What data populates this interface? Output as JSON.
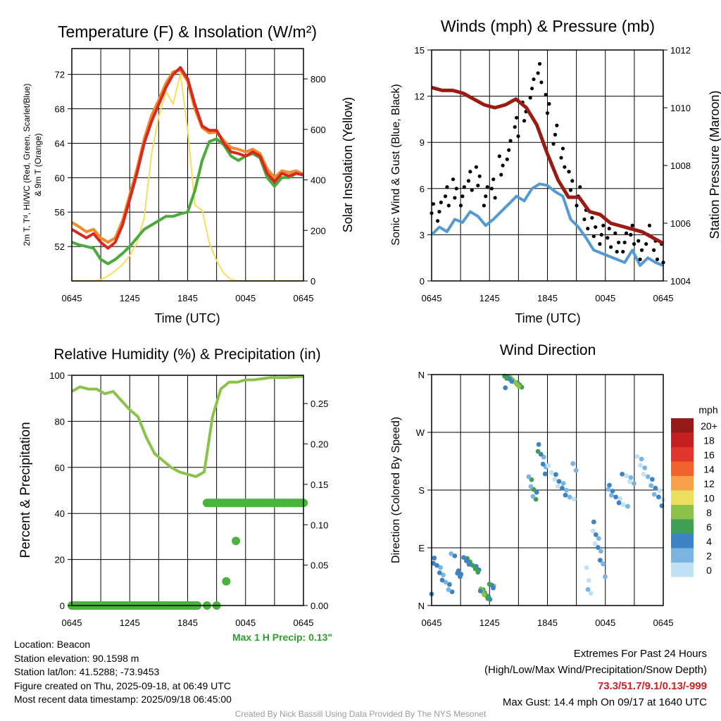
{
  "xticks": [
    "0645",
    "1245",
    "1845",
    "0045",
    "0645"
  ],
  "chart_data": [
    {
      "type": "line",
      "title": "Temperature (F) & Insolation (W/m²)",
      "xlabel": "Time (UTC)",
      "ylabel_lines": [
        "2m T, Tᵈ, HI/WC (Red, Green, Scarlet/Blue)",
        "& 9m T (Orange)"
      ],
      "y2label": "Solar Insolation (Yellow)",
      "ylim": [
        48,
        75
      ],
      "yticks": [
        52,
        56,
        60,
        64,
        68,
        72
      ],
      "y2lim": [
        0,
        920
      ],
      "y2ticks": [
        0,
        200,
        400,
        600,
        800
      ],
      "x_hours": [
        0,
        0.5,
        1,
        1.5,
        2,
        2.5,
        3,
        3.5,
        4,
        4.5,
        5,
        5.5,
        6,
        6.5,
        7,
        7.5,
        8,
        8.5,
        9,
        9.5,
        10,
        10.5,
        11,
        11.5,
        12,
        12.5,
        13,
        13.5,
        14,
        14.5,
        15,
        15.5,
        16,
        16.5,
        17,
        17.5,
        18,
        18.5,
        19,
        19.5,
        20,
        20.5,
        21,
        21.5,
        22,
        22.5,
        23,
        23.5,
        24
      ],
      "series": [
        {
          "color": "#d62a20",
          "values": [
            54.0,
            53.5,
            53.0,
            53.5,
            52.5,
            51.8,
            52.5,
            54.5,
            57.5,
            60.5,
            64.0,
            66.5,
            68.5,
            70.5,
            72.0,
            72.8,
            71.5,
            68.5,
            66.0,
            65.5,
            65.5,
            64.0,
            63.0,
            62.8,
            62.5,
            63.0,
            62.5,
            60.5,
            59.5,
            60.5,
            60.2,
            60.5,
            60.3
          ]
        },
        {
          "color": "#f08a2c",
          "values": [
            54.8,
            54.3,
            53.7,
            54.0,
            53.0,
            52.5,
            53.0,
            55.0,
            58.0,
            61.0,
            64.5,
            67.2,
            69.0,
            71.0,
            72.3,
            72.5,
            71.2,
            68.0,
            65.8,
            65.2,
            65.3,
            64.3,
            63.5,
            63.3,
            63.0,
            63.3,
            62.8,
            61.0,
            60.0,
            60.8,
            60.6,
            60.8,
            60.4
          ]
        },
        {
          "color": "#4aaa3c",
          "values": [
            52.5,
            52.2,
            52.0,
            51.8,
            50.5,
            50.0,
            50.5,
            51.2,
            52.0,
            53.0,
            54.0,
            54.5,
            55.0,
            55.5,
            55.5,
            55.8,
            56.0,
            58.5,
            62.0,
            64.2,
            64.5,
            63.8,
            62.5,
            62.0,
            62.5,
            62.8,
            62.3,
            60.0,
            59.0,
            60.0,
            60.0,
            60.5,
            60.3
          ]
        },
        {
          "color": "#f6dd5b",
          "values": [
            0,
            0,
            0,
            0,
            5,
            20,
            40,
            65,
            100,
            150,
            250,
            500,
            650,
            750,
            700,
            820,
            600,
            300,
            280,
            150,
            80,
            30,
            5,
            0,
            0,
            0,
            0,
            0,
            0,
            0,
            0,
            0,
            0
          ],
          "axis": "right"
        }
      ]
    },
    {
      "type": "scatter",
      "title": "Winds (mph) & Pressure (mb)",
      "xlabel": "Time (UTC)",
      "ylabel": "Sonic Wind & Gust (Blue, Black)",
      "y2label": "Station Pressure (Maroon)",
      "ylim": [
        0,
        15
      ],
      "yticks": [
        0,
        3,
        6,
        9,
        12,
        15
      ],
      "y2lim": [
        1004,
        1012
      ],
      "y2ticks": [
        1004,
        1006,
        1008,
        1010,
        1012
      ],
      "series": [
        {
          "color": "#5599d4",
          "values": [
            3.0,
            3.5,
            3.2,
            4.0,
            3.8,
            4.5,
            4.2,
            3.6,
            4.0,
            4.5,
            5.0,
            5.5,
            5.2,
            6.0,
            6.3,
            6.2,
            5.8,
            5.5,
            4.0,
            3.5,
            2.8,
            2.0,
            1.8,
            1.6,
            1.4,
            1.2,
            2.0,
            1.0,
            1.5,
            1.2,
            1.0
          ]
        },
        {
          "color": "#000000",
          "values": [
            5.0,
            4.5,
            5.5,
            6.0,
            5.5,
            6.5,
            6.8,
            5.5,
            6.0,
            7.5,
            8.5,
            10.0,
            11.0,
            12.5,
            13.5,
            11.5,
            9.5,
            8.0,
            6.5,
            5.5,
            4.0,
            3.5,
            3.0,
            2.8,
            2.5,
            2.5,
            3.0,
            2.0,
            3.0,
            2.0,
            1.8
          ]
        },
        {
          "color": "#9b1b14",
          "axis": "right",
          "values": [
            1010.7,
            1010.6,
            1010.6,
            1010.5,
            1010.3,
            1010.1,
            1010.0,
            1010.1,
            1010.3,
            1010.0,
            1009.4,
            1008.4,
            1007.5,
            1006.9,
            1006.9,
            1006.4,
            1006.3,
            1006.0,
            1005.9,
            1005.8,
            1005.7,
            1005.5,
            1005.3
          ]
        }
      ]
    },
    {
      "type": "line",
      "title": "Relative Humidity (%) & Precipitation (in)",
      "ylabel": "Percent & Precipitation",
      "ylim": [
        0,
        100
      ],
      "yticks": [
        0,
        20,
        40,
        60,
        80,
        100
      ],
      "y2lim": [
        0,
        0.285
      ],
      "y2ticks": [
        "0.00",
        "0.05",
        "0.10",
        "0.15",
        "0.20",
        "0.25"
      ],
      "annotation": "Max 1 H Precip: 0.13\"",
      "series": [
        {
          "color": "#8bc34a",
          "values": [
            93,
            95,
            94,
            94,
            92,
            93,
            89,
            85,
            82,
            73,
            66,
            63,
            60,
            58,
            57,
            56,
            58,
            82,
            94,
            97,
            97,
            98,
            98,
            98.5,
            99,
            99,
            99,
            99.3,
            99.5
          ]
        },
        {
          "color": "#4ab33c",
          "axis": "right",
          "values": [
            0,
            0,
            0,
            0,
            0,
            0,
            0,
            0,
            0,
            0,
            0,
            0,
            0,
            0,
            0,
            0,
            0.03,
            0.08,
            0.127,
            0.127,
            0.127,
            0.127,
            0.127,
            0.127,
            0.127
          ]
        }
      ]
    },
    {
      "type": "scatter",
      "title": "Wind Direction",
      "ylabel": "Direction (Colored By Speed)",
      "yticks": [
        "N",
        "E",
        "S",
        "W",
        "N"
      ],
      "legend_title": "mph",
      "legend_labels": [
        "20+",
        "18",
        "16",
        "14",
        "12",
        "10",
        "8",
        "6",
        "4",
        "2",
        "0"
      ],
      "legend_colors": [
        "#951b19",
        "#c4201f",
        "#e0362d",
        "#f0632d",
        "#f6a04a",
        "#eede5f",
        "#8ac24a",
        "#3f9f54",
        "#3d83c4",
        "#7ab4e0",
        "#c1e1f5"
      ]
    }
  ],
  "info": {
    "location": "Location: Beacon",
    "elevation": "Station elevation: 90.1598 m",
    "latlon": "Station lat/lon: 41.5288; -73.9453",
    "created": "Figure created on Thu, 2025-09-18, at 06:49 UTC",
    "recent": "Most recent data timestamp: 2025/09/18 06:45:00"
  },
  "extremes": {
    "title": "Extremes For Past 24 Hours",
    "subtitle": "(High/Low/Max Wind/Precipitation/Snow Depth)",
    "values": "73.3/51.7/9.1/0.13/-999",
    "gust": "Max Gust: 14.4 mph On 09/17 at 1640 UTC"
  },
  "credit": "Created By Nick Bassill Using Data Provided By The NYS Mesonet"
}
